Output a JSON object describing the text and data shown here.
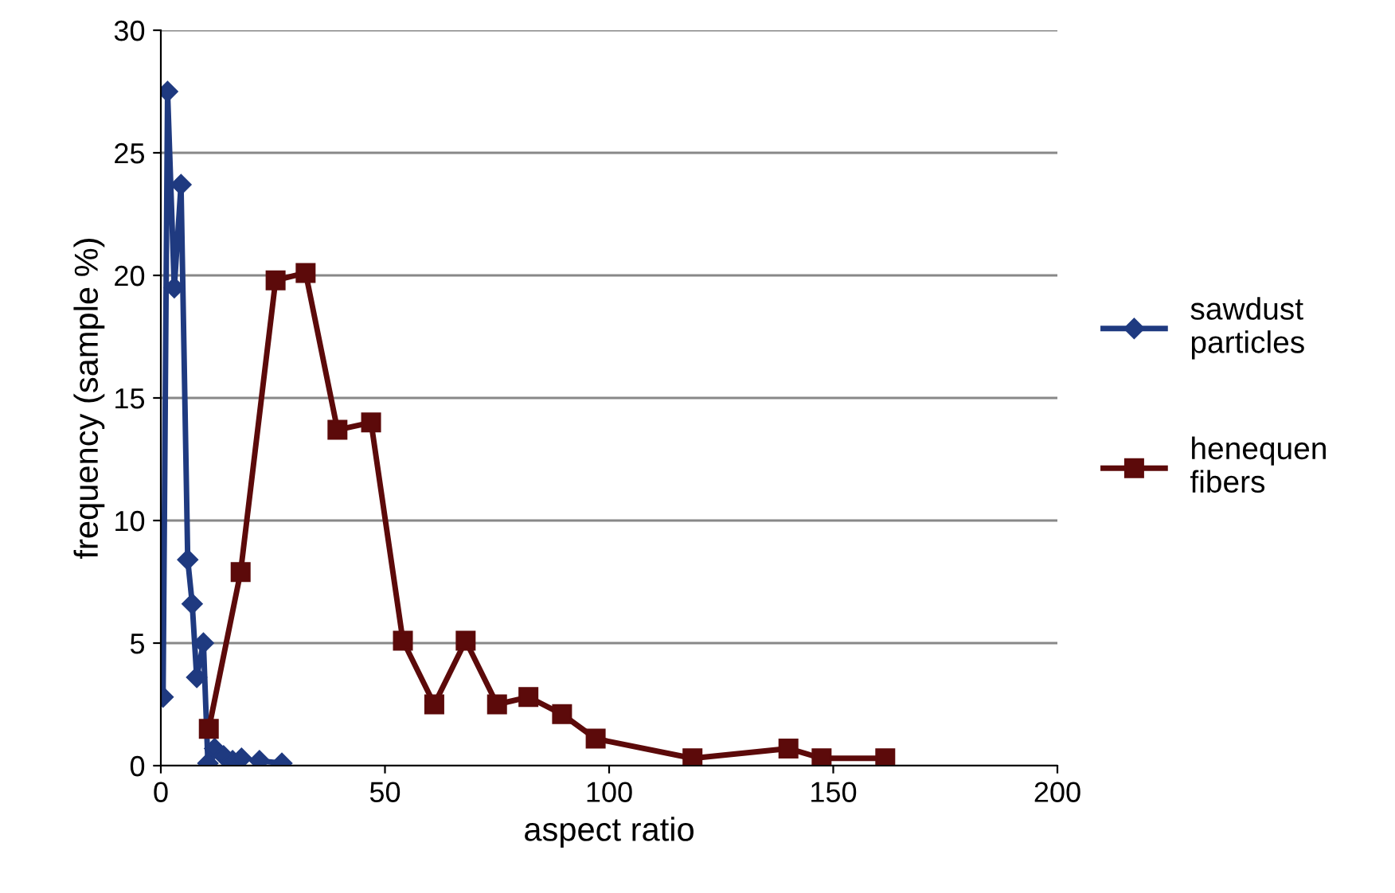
{
  "chart_data": {
    "type": "line",
    "xlabel": "aspect ratio",
    "ylabel": "frequency (sample %)",
    "xlim": [
      0,
      200
    ],
    "xticks": [
      0,
      50,
      100,
      150,
      200
    ],
    "ylim": [
      0,
      30
    ],
    "yticks": [
      0,
      5,
      10,
      15,
      20,
      25,
      30
    ],
    "grid": "y",
    "legend": "right",
    "line_style": "solid",
    "series": [
      {
        "name": "sawdust\nparticles",
        "color": "#1f3a80",
        "marker": "diamond",
        "x": [
          0.5,
          1.5,
          3,
          4.5,
          6,
          7,
          8,
          9.5,
          10.5,
          12,
          14,
          16,
          18,
          20,
          22,
          27
        ],
        "values": [
          2.8,
          27.5,
          19.5,
          23.7,
          8.4,
          6.6,
          3.6,
          5,
          0.1,
          0.7,
          0.4,
          0.2,
          0.3,
          null,
          0.2,
          0.1
        ]
      },
      {
        "name": "henequen\nfibers",
        "color": "#5c0a0a",
        "marker": "square",
        "x": [
          10.7,
          17.8,
          25.6,
          32.3,
          39.4,
          46.9,
          54,
          61,
          68,
          75,
          82,
          89.5,
          97,
          118.6,
          140,
          147.4,
          161.6
        ],
        "values": [
          1.5,
          7.9,
          19.8,
          20.1,
          13.7,
          14.0,
          5.1,
          2.5,
          5.1,
          2.5,
          2.8,
          2.1,
          1.1,
          0.3,
          0.7,
          0.3,
          0.3
        ]
      }
    ]
  }
}
